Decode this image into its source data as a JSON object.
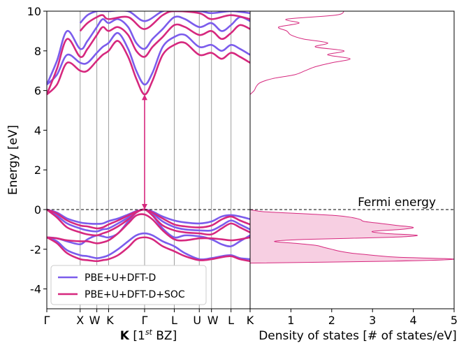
{
  "chart_data": [
    {
      "type": "line",
      "panel": "band-structure",
      "ylabel": "Energy [eV]",
      "xlabel_bold": "K",
      "xlabel_rest": " [1",
      "xlabel_sup": "st",
      "xlabel_tail": " BZ]",
      "ylim": [
        -5,
        10
      ],
      "yticks": [
        -4,
        -2,
        0,
        2,
        4,
        6,
        8,
        10
      ],
      "ytick_labels": [
        "-4",
        "-2",
        "0",
        "2",
        "4",
        "6",
        "8",
        "10"
      ],
      "kpoints": [
        {
          "label": "Γ",
          "x": 0.0
        },
        {
          "label": "X",
          "x": 0.164
        },
        {
          "label": "W",
          "x": 0.246
        },
        {
          "label": "K",
          "x": 0.304
        },
        {
          "label": "Γ",
          "x": 0.481
        },
        {
          "label": "L",
          "x": 0.627
        },
        {
          "label": "U",
          "x": 0.75
        },
        {
          "label": "W",
          "x": 0.81
        },
        {
          "label": "L",
          "x": 0.906
        },
        {
          "label": "K",
          "x": 1.0
        }
      ],
      "band_gap_arrow": {
        "x": 0.481,
        "from": 0.0,
        "to": 5.8,
        "color": "#d6287e"
      },
      "fermi_level": 0.0,
      "series": [
        {
          "name": "PBE+U+DFT-D",
          "color": "#7b5cec",
          "bands": [
            {
              "x": [
                0,
                0.05,
                0.1,
                0.164,
                0.2,
                0.246,
                0.275,
                0.304,
                0.35,
                0.4,
                0.44,
                0.481,
                0.52,
                0.57,
                0.627,
                0.68,
                0.75,
                0.81,
                0.86,
                0.906,
                0.95,
                1.0
              ],
              "y": [
                0,
                -0.15,
                -0.45,
                -0.65,
                -0.7,
                -0.72,
                -0.7,
                -0.58,
                -0.45,
                -0.25,
                -0.08,
                0,
                -0.1,
                -0.35,
                -0.55,
                -0.65,
                -0.7,
                -0.6,
                -0.35,
                -0.28,
                -0.35,
                -0.48
              ]
            },
            {
              "x": [
                0,
                0.05,
                0.1,
                0.164,
                0.2,
                0.246,
                0.275,
                0.304,
                0.35,
                0.4,
                0.44,
                0.481,
                0.52,
                0.57,
                0.627,
                0.68,
                0.75,
                0.81,
                0.86,
                0.906,
                0.95,
                1.0
              ],
              "y": [
                0,
                -0.3,
                -0.7,
                -0.95,
                -1.05,
                -1.1,
                -1.0,
                -0.95,
                -0.7,
                -0.4,
                -0.12,
                0,
                -0.2,
                -0.6,
                -0.88,
                -1.0,
                -1.05,
                -1.05,
                -0.8,
                -0.55,
                -0.75,
                -1.0
              ]
            },
            {
              "x": [
                0,
                0.05,
                0.1,
                0.164,
                0.2,
                0.246,
                0.275,
                0.304,
                0.35,
                0.4,
                0.44,
                0.481,
                0.52,
                0.57,
                0.627,
                0.68,
                0.75,
                0.81,
                0.86,
                0.906,
                0.95,
                1.0
              ],
              "y": [
                -1.4,
                -1.45,
                -1.6,
                -1.75,
                -1.5,
                -1.3,
                -1.35,
                -1.4,
                -1.2,
                -0.6,
                -0.15,
                0,
                -0.3,
                -0.95,
                -1.4,
                -1.3,
                -1.35,
                -1.5,
                -1.75,
                -1.85,
                -1.6,
                -1.3
              ]
            },
            {
              "x": [
                0,
                0.05,
                0.1,
                0.164,
                0.2,
                0.246,
                0.275,
                0.304,
                0.35,
                0.4,
                0.44,
                0.481,
                0.52,
                0.57,
                0.627,
                0.68,
                0.75,
                0.81,
                0.86,
                0.906,
                0.95,
                1.0
              ],
              "y": [
                -1.4,
                -1.6,
                -2.05,
                -2.3,
                -2.35,
                -2.45,
                -2.4,
                -2.3,
                -2.0,
                -1.6,
                -1.3,
                -1.2,
                -1.3,
                -1.6,
                -1.85,
                -2.2,
                -2.5,
                -2.45,
                -2.35,
                -2.3,
                -2.45,
                -2.5
              ]
            },
            {
              "x": [
                0,
                0.05,
                0.1,
                0.164,
                0.2,
                0.246,
                0.275,
                0.304,
                0.35,
                0.4,
                0.44,
                0.481,
                0.52,
                0.57,
                0.627,
                0.68,
                0.75,
                0.81,
                0.86,
                0.906,
                0.95,
                1.0
              ],
              "y": [
                6.3,
                6.8,
                7.8,
                7.4,
                7.4,
                7.9,
                8.2,
                8.4,
                8.9,
                8.1,
                7.0,
                6.3,
                6.9,
                8.2,
                8.7,
                8.8,
                8.2,
                8.3,
                8.0,
                8.3,
                8.1,
                7.8
              ]
            },
            {
              "x": [
                0,
                0.05,
                0.1,
                0.164,
                0.2,
                0.246,
                0.275,
                0.304,
                0.35,
                0.4,
                0.44,
                0.481,
                0.52,
                0.57,
                0.627,
                0.68,
                0.75,
                0.81,
                0.86,
                0.906,
                0.95,
                1.0
              ],
              "y": [
                6.3,
                7.5,
                9.0,
                8.1,
                8.5,
                9.2,
                9.6,
                9.4,
                9.6,
                9.2,
                8.4,
                8.1,
                8.6,
                9.1,
                9.7,
                9.6,
                9.2,
                9.4,
                9.0,
                9.3,
                9.7,
                9.5
              ]
            },
            {
              "x": [
                0.164,
                0.2,
                0.246,
                0.275,
                0.304,
                0.4,
                0.481,
                0.57,
                0.627,
                0.75,
                0.81,
                0.906,
                1.0
              ],
              "y": [
                9.4,
                9.8,
                10.0,
                10.0,
                10.0,
                10.0,
                9.5,
                10.0,
                10.0,
                10.0,
                9.9,
                10.0,
                9.9
              ]
            }
          ]
        },
        {
          "name": "PBE+U+DFT-D+SOC",
          "color": "#d6287e",
          "bands": [
            {
              "x": [
                0,
                0.05,
                0.1,
                0.164,
                0.2,
                0.246,
                0.275,
                0.304,
                0.35,
                0.4,
                0.44,
                0.481,
                0.52,
                0.57,
                0.627,
                0.68,
                0.75,
                0.81,
                0.86,
                0.906,
                0.95,
                1.0
              ],
              "y": [
                0,
                -0.2,
                -0.55,
                -0.8,
                -0.85,
                -0.95,
                -0.9,
                -0.75,
                -0.55,
                -0.3,
                -0.1,
                0,
                -0.15,
                -0.45,
                -0.75,
                -0.85,
                -0.9,
                -0.8,
                -0.5,
                -0.35,
                -0.55,
                -0.75
              ]
            },
            {
              "x": [
                0,
                0.05,
                0.1,
                0.164,
                0.2,
                0.246,
                0.275,
                0.304,
                0.35,
                0.4,
                0.44,
                0.481,
                0.52,
                0.57,
                0.627,
                0.68,
                0.75,
                0.81,
                0.86,
                0.906,
                0.95,
                1.0
              ],
              "y": [
                0,
                -0.4,
                -0.9,
                -1.15,
                -1.25,
                -1.3,
                -1.2,
                -1.1,
                -0.85,
                -0.5,
                -0.15,
                0,
                -0.3,
                -0.8,
                -1.05,
                -1.15,
                -1.2,
                -1.25,
                -0.95,
                -0.7,
                -0.9,
                -1.15
              ]
            },
            {
              "x": [
                0,
                0.05,
                0.1,
                0.164,
                0.2,
                0.246,
                0.275,
                0.304,
                0.35,
                0.4,
                0.44,
                0.481,
                0.52,
                0.57,
                0.627,
                0.68,
                0.75,
                0.81,
                0.86,
                0.906,
                0.95,
                1.0
              ],
              "y": [
                -1.4,
                -1.45,
                -1.55,
                -1.6,
                -1.6,
                -1.7,
                -1.65,
                -1.55,
                -1.2,
                -0.7,
                -0.3,
                -0.25,
                -0.5,
                -1.05,
                -1.5,
                -1.55,
                -1.45,
                -1.45,
                -1.5,
                -1.55,
                -1.5,
                -1.4
              ]
            },
            {
              "x": [
                0,
                0.05,
                0.1,
                0.164,
                0.2,
                0.246,
                0.275,
                0.304,
                0.35,
                0.4,
                0.44,
                0.481,
                0.52,
                0.57,
                0.627,
                0.68,
                0.75,
                0.81,
                0.86,
                0.906,
                0.95,
                1.0
              ],
              "y": [
                -1.4,
                -1.7,
                -2.2,
                -2.5,
                -2.55,
                -2.6,
                -2.55,
                -2.5,
                -2.3,
                -1.9,
                -1.5,
                -1.4,
                -1.5,
                -1.85,
                -2.1,
                -2.35,
                -2.55,
                -2.5,
                -2.4,
                -2.35,
                -2.5,
                -2.6
              ]
            },
            {
              "x": [
                0,
                0.05,
                0.1,
                0.164,
                0.2,
                0.246,
                0.275,
                0.304,
                0.35,
                0.4,
                0.44,
                0.481,
                0.52,
                0.57,
                0.627,
                0.68,
                0.75,
                0.81,
                0.86,
                0.906,
                0.95,
                1.0
              ],
              "y": [
                5.8,
                6.3,
                7.4,
                7.0,
                7.0,
                7.5,
                7.8,
                8.0,
                8.5,
                7.7,
                6.6,
                5.8,
                6.5,
                7.8,
                8.3,
                8.4,
                7.8,
                7.9,
                7.6,
                7.9,
                7.7,
                7.4
              ]
            },
            {
              "x": [
                0,
                0.05,
                0.1,
                0.164,
                0.2,
                0.246,
                0.275,
                0.304,
                0.35,
                0.4,
                0.44,
                0.481,
                0.52,
                0.57,
                0.627,
                0.68,
                0.75,
                0.81,
                0.86,
                0.906,
                0.95,
                1.0
              ],
              "y": [
                5.8,
                7.1,
                8.6,
                7.7,
                8.1,
                8.8,
                9.2,
                9.0,
                9.2,
                8.8,
                8.0,
                7.7,
                8.2,
                8.7,
                9.3,
                9.2,
                8.8,
                9.0,
                8.6,
                8.9,
                9.3,
                9.1
              ]
            },
            {
              "x": [
                0.164,
                0.2,
                0.246,
                0.275,
                0.304,
                0.4,
                0.481,
                0.57,
                0.627,
                0.75,
                0.81,
                0.906,
                1.0
              ],
              "y": [
                9.0,
                9.4,
                9.7,
                9.8,
                9.6,
                9.7,
                9.1,
                9.8,
                10.0,
                9.9,
                9.6,
                9.8,
                9.6
              ]
            }
          ]
        }
      ],
      "legend": {
        "placement": "lower-left",
        "entries": [
          "PBE+U+DFT-D",
          "PBE+U+DFT-D+SOC"
        ]
      }
    },
    {
      "type": "area",
      "panel": "density-of-states",
      "xlabel": "Density of states [# of states/eV]",
      "xlim": [
        0,
        5
      ],
      "ylim": [
        -5,
        10
      ],
      "xticks": [
        0,
        1,
        2,
        3,
        4,
        5
      ],
      "xtick_labels": [
        "K",
        "1",
        "2",
        "3",
        "4",
        "5"
      ],
      "fermi_label": "Fermi energy",
      "fill_color": "#f7cfe2",
      "line_color": "#d6287e",
      "valence": {
        "energy": [
          0.0,
          -0.1,
          -0.2,
          -0.3,
          -0.4,
          -0.5,
          -0.6,
          -0.7,
          -0.8,
          -0.9,
          -1.0,
          -1.1,
          -1.2,
          -1.3,
          -1.4,
          -1.5,
          -1.6,
          -1.7,
          -1.8,
          -1.9,
          -2.0,
          -2.1,
          -2.2,
          -2.3,
          -2.4,
          -2.5,
          -2.6,
          -2.7
        ],
        "dos": [
          0.0,
          0.3,
          1.2,
          2.1,
          2.5,
          2.7,
          2.8,
          3.2,
          3.6,
          4.0,
          3.7,
          3.0,
          3.3,
          4.1,
          3.4,
          1.4,
          0.6,
          1.1,
          1.6,
          1.8,
          2.0,
          2.2,
          2.5,
          3.0,
          3.6,
          5.0,
          3.5,
          0.0
        ]
      },
      "conduction": {
        "energy": [
          5.8,
          6.0,
          6.2,
          6.4,
          6.6,
          6.8,
          7.0,
          7.2,
          7.4,
          7.6,
          7.8,
          8.0,
          8.2,
          8.4,
          8.6,
          8.8,
          9.0,
          9.2,
          9.4,
          9.6,
          9.8,
          10.0
        ],
        "dos": [
          0.0,
          0.1,
          0.15,
          0.25,
          0.55,
          1.1,
          1.35,
          1.6,
          2.0,
          2.45,
          1.9,
          2.3,
          1.6,
          1.9,
          1.3,
          1.0,
          0.9,
          0.7,
          1.2,
          0.9,
          2.1,
          2.3
        ]
      }
    }
  ]
}
